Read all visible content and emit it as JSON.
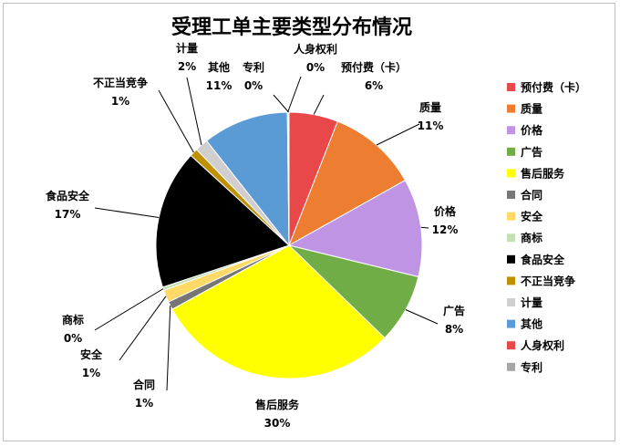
{
  "chart_data": {
    "type": "pie",
    "title": "受理工单主要类型分布情况",
    "legend_position": "right",
    "slices": [
      {
        "name": "预付费（卡）",
        "label_name": "预付费（卡）",
        "value": 6,
        "label": "6%",
        "color": "#e8484a"
      },
      {
        "name": "质量",
        "label_name": "质量",
        "value": 11,
        "label": "11%",
        "color": "#ed7d31"
      },
      {
        "name": "价格",
        "label_name": "价格",
        "value": 12,
        "label": "12%",
        "color": "#bf94e4"
      },
      {
        "name": "广告",
        "label_name": "广告",
        "value": 8.5,
        "label": "8%",
        "color": "#70ad47"
      },
      {
        "name": "售后服务",
        "label_name": "售后服务",
        "value": 30,
        "label": "30%",
        "color": "#ffff00"
      },
      {
        "name": "合同",
        "label_name": "合同",
        "value": 1,
        "label": "1%",
        "color": "#767676"
      },
      {
        "name": "安全",
        "label_name": "安全",
        "value": 1.5,
        "label": "1%",
        "color": "#ffd966"
      },
      {
        "name": "商标",
        "label_name": "商标",
        "value": 0.4,
        "label": "0%",
        "color": "#c5e0b4"
      },
      {
        "name": "食品安全",
        "label_name": "食品安全",
        "value": 17,
        "label": "17%",
        "color": "#000000"
      },
      {
        "name": "不正当竞争",
        "label_name": "不正当竞争",
        "value": 1,
        "label": "1%",
        "color": "#bf9000"
      },
      {
        "name": "计量",
        "label_name": "计量",
        "value": 1.6,
        "label": "2%",
        "color": "#d0cece"
      },
      {
        "name": "其他",
        "label_name": "其他",
        "value": 10.5,
        "label": "11%",
        "color": "#5b9bd5"
      },
      {
        "name": "人身权利",
        "label_name": "人身权利",
        "value": 0.1,
        "label": "0%",
        "color": "#e8484a"
      },
      {
        "name": "专利",
        "label_name": "专利",
        "value": 0.1,
        "label": "0%",
        "color": "#a6a6a6"
      }
    ]
  }
}
